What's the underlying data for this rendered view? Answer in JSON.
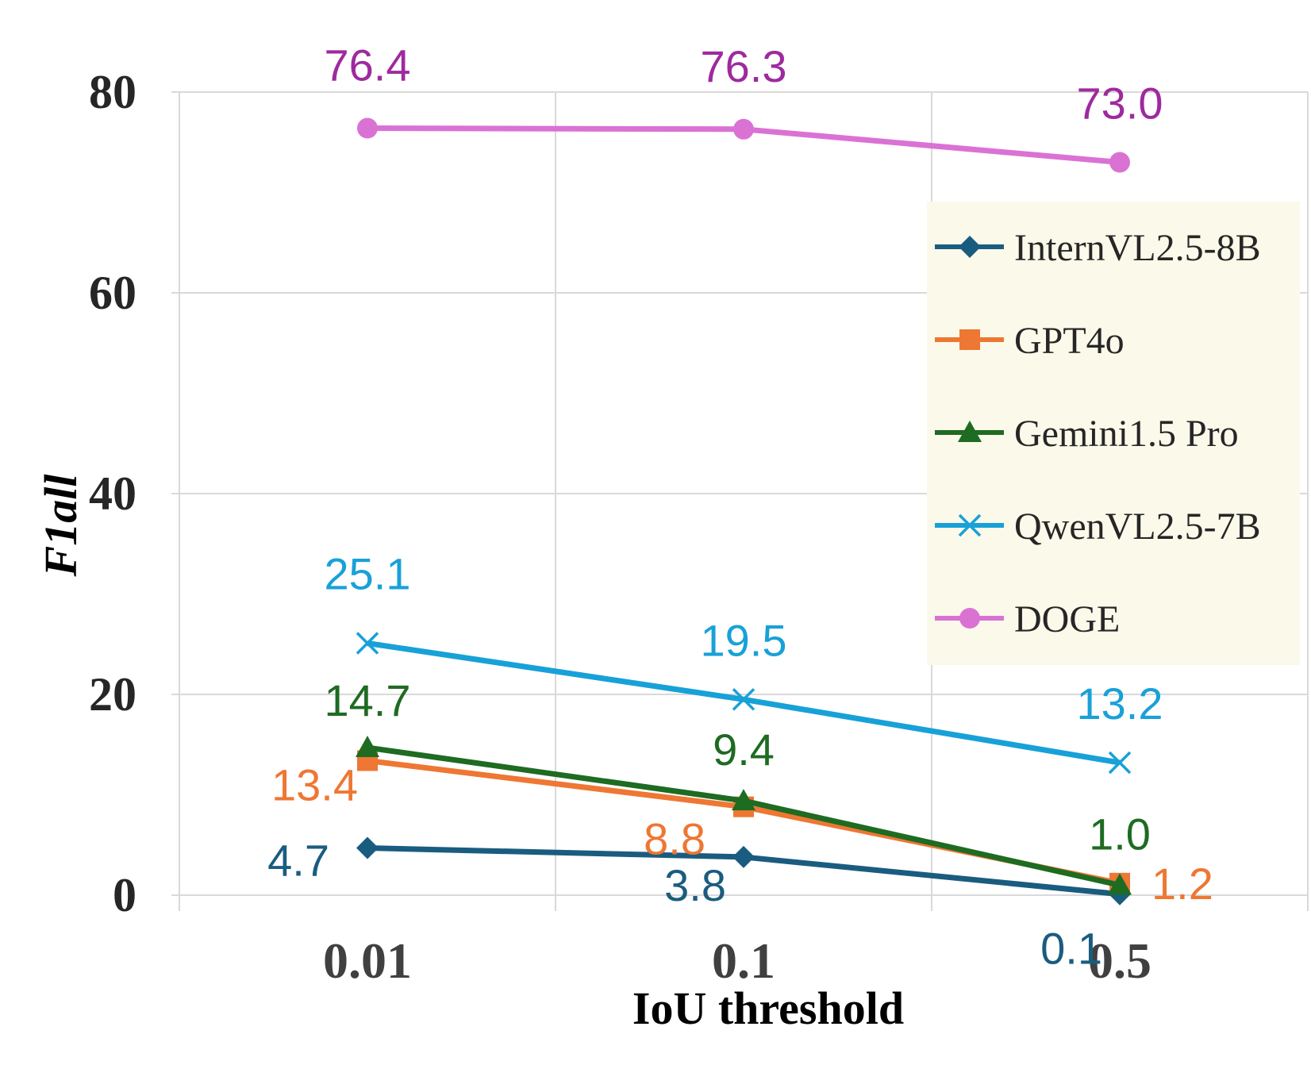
{
  "chart_data": {
    "type": "line",
    "title": "",
    "xlabel": "IoU threshold",
    "ylabel": "F1all",
    "categories": [
      "0.01",
      "0.1",
      "0.5"
    ],
    "y_ticks": [
      "0",
      "20",
      "40",
      "60",
      "80"
    ],
    "ylim": [
      0,
      80
    ],
    "grid": true,
    "legend_position": "right",
    "series": [
      {
        "name": "InternVL2.5-8B",
        "values": [
          4.7,
          3.8,
          0.1
        ],
        "labels": [
          "4.7",
          "3.8",
          "0.1"
        ],
        "color": "#1a5c7f",
        "label_color": "#1a5c7f",
        "marker": "diamond"
      },
      {
        "name": "GPT4o",
        "values": [
          13.4,
          8.8,
          1.2
        ],
        "labels": [
          "13.4",
          "8.8",
          "1.2"
        ],
        "color": "#ee7733",
        "label_color": "#ee7733",
        "marker": "square"
      },
      {
        "name": "Gemini1.5 Pro",
        "values": [
          14.7,
          9.4,
          1.0
        ],
        "labels": [
          "14.7",
          "9.4",
          "1.0"
        ],
        "color": "#1e6b22",
        "label_color": "#1e6b22",
        "marker": "triangle"
      },
      {
        "name": "QwenVL2.5-7B",
        "values": [
          25.1,
          19.5,
          13.2
        ],
        "labels": [
          "25.1",
          "19.5",
          "13.2"
        ],
        "color": "#18a1d8",
        "label_color": "#18a1d8",
        "marker": "x"
      },
      {
        "name": "DOGE",
        "values": [
          76.4,
          76.3,
          73.0
        ],
        "labels": [
          "76.4",
          "76.3",
          "73.0"
        ],
        "color": "#da72d4",
        "label_color": "#9e2a9e",
        "marker": "circle"
      }
    ]
  }
}
